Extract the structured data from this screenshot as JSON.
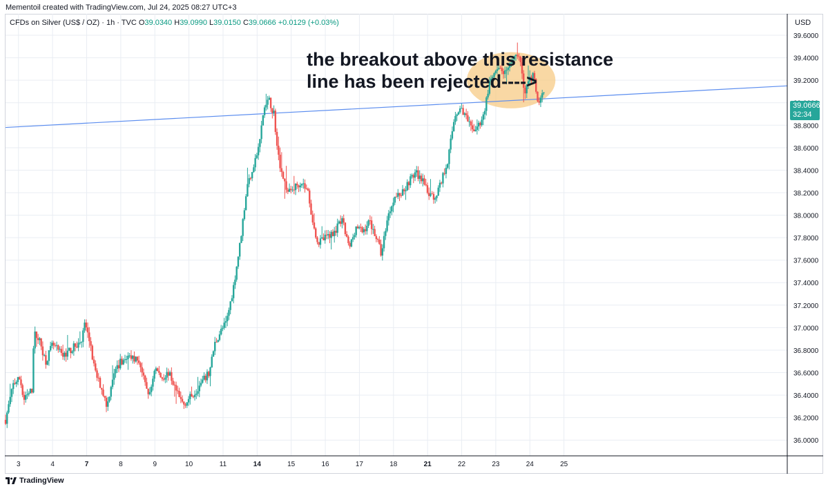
{
  "header": {
    "credit": "Mementoil created with TradingView.com, Jul 24, 2025 08:27 UTC+3",
    "currency": "USD"
  },
  "legend": {
    "symbol": "CFDs on Silver (US$ / OZ) · 1h · TVC",
    "o_label": "O",
    "o_value": "39.0340",
    "h_label": "H",
    "h_value": "39.0990",
    "l_label": "L",
    "l_value": "39.0150",
    "c_label": "C",
    "c_value": "39.0666",
    "change": "+0.0129 (+0.03%)"
  },
  "price_tag": {
    "price": "39.0666",
    "countdown": "32:34"
  },
  "annotation": {
    "line1": "the breakout above this resistance",
    "line2": "line has been rejected---->"
  },
  "footer": {
    "brand": "TradingView"
  },
  "colors": {
    "up": "#26a69a",
    "down": "#ef5350",
    "resistance": "#5b8def",
    "highlight": "#f7c77d",
    "grid": "#e9edf3"
  },
  "chart_data": {
    "type": "candlestick",
    "title": "CFDs on Silver (US$ / OZ) · 1h · TVC",
    "ylabel": "USD",
    "ylim": [
      35.86,
      39.68
    ],
    "xlim": [
      2.62,
      25.55
    ],
    "yticks": [
      "36.0000",
      "36.2000",
      "36.4000",
      "36.6000",
      "36.8000",
      "37.0000",
      "37.2000",
      "37.4000",
      "37.6000",
      "37.8000",
      "38.0000",
      "38.2000",
      "38.4000",
      "38.6000",
      "38.8000",
      "39.0000",
      "39.2000",
      "39.4000",
      "39.6000"
    ],
    "xticks": [
      {
        "x": 3,
        "label": "3",
        "bold": false
      },
      {
        "x": 4,
        "label": "4",
        "bold": false
      },
      {
        "x": 5,
        "label": "7",
        "bold": true
      },
      {
        "x": 6,
        "label": "8",
        "bold": false
      },
      {
        "x": 7,
        "label": "9",
        "bold": false
      },
      {
        "x": 8,
        "label": "10",
        "bold": false
      },
      {
        "x": 9,
        "label": "11",
        "bold": false
      },
      {
        "x": 10,
        "label": "14",
        "bold": true
      },
      {
        "x": 11,
        "label": "15",
        "bold": false
      },
      {
        "x": 12,
        "label": "16",
        "bold": false
      },
      {
        "x": 13,
        "label": "17",
        "bold": false
      },
      {
        "x": 14,
        "label": "18",
        "bold": false
      },
      {
        "x": 15,
        "label": "21",
        "bold": true
      },
      {
        "x": 16,
        "label": "22",
        "bold": false
      },
      {
        "x": 17,
        "label": "23",
        "bold": false
      },
      {
        "x": 18,
        "label": "24",
        "bold": false
      },
      {
        "x": 19,
        "label": "25",
        "bold": false
      }
    ],
    "resistance_line": {
      "x1": 2.62,
      "y1": 38.78,
      "x2": 25.55,
      "y2": 39.15
    },
    "highlight_ellipse": {
      "cx": 17.45,
      "cy": 39.2,
      "rx": 1.3,
      "ry": 0.25
    },
    "path": [
      [
        2.62,
        36.18
      ],
      [
        2.85,
        36.5
      ],
      [
        3.05,
        36.55
      ],
      [
        3.15,
        36.35
      ],
      [
        3.4,
        36.45
      ],
      [
        3.45,
        36.95
      ],
      [
        3.6,
        36.9
      ],
      [
        3.8,
        36.7
      ],
      [
        4.0,
        36.85
      ],
      [
        4.3,
        36.75
      ],
      [
        4.6,
        36.82
      ],
      [
        4.85,
        36.88
      ],
      [
        4.95,
        37.05
      ],
      [
        5.1,
        36.85
      ],
      [
        5.25,
        36.6
      ],
      [
        5.45,
        36.45
      ],
      [
        5.6,
        36.3
      ],
      [
        5.75,
        36.55
      ],
      [
        6.0,
        36.7
      ],
      [
        6.3,
        36.75
      ],
      [
        6.55,
        36.7
      ],
      [
        6.7,
        36.5
      ],
      [
        6.85,
        36.4
      ],
      [
        7.0,
        36.65
      ],
      [
        7.2,
        36.55
      ],
      [
        7.4,
        36.6
      ],
      [
        7.55,
        36.5
      ],
      [
        7.7,
        36.38
      ],
      [
        7.85,
        36.32
      ],
      [
        8.1,
        36.4
      ],
      [
        8.35,
        36.5
      ],
      [
        8.6,
        36.6
      ],
      [
        8.75,
        36.85
      ],
      [
        8.9,
        36.95
      ],
      [
        9.1,
        37.05
      ],
      [
        9.3,
        37.35
      ],
      [
        9.5,
        37.75
      ],
      [
        9.7,
        38.25
      ],
      [
        9.9,
        38.45
      ],
      [
        10.05,
        38.6
      ],
      [
        10.2,
        38.95
      ],
      [
        10.35,
        39.02
      ],
      [
        10.5,
        38.9
      ],
      [
        10.6,
        38.55
      ],
      [
        10.75,
        38.35
      ],
      [
        10.9,
        38.2
      ],
      [
        11.1,
        38.25
      ],
      [
        11.3,
        38.3
      ],
      [
        11.5,
        38.2
      ],
      [
        11.65,
        37.9
      ],
      [
        11.8,
        37.75
      ],
      [
        12.0,
        37.8
      ],
      [
        12.25,
        37.85
      ],
      [
        12.5,
        37.95
      ],
      [
        12.7,
        37.7
      ],
      [
        12.9,
        37.9
      ],
      [
        13.1,
        37.85
      ],
      [
        13.3,
        37.95
      ],
      [
        13.5,
        37.8
      ],
      [
        13.65,
        37.65
      ],
      [
        13.8,
        37.95
      ],
      [
        14.0,
        38.15
      ],
      [
        14.25,
        38.2
      ],
      [
        14.45,
        38.3
      ],
      [
        14.65,
        38.38
      ],
      [
        14.85,
        38.3
      ],
      [
        15.0,
        38.2
      ],
      [
        15.2,
        38.15
      ],
      [
        15.4,
        38.3
      ],
      [
        15.6,
        38.5
      ],
      [
        15.8,
        38.9
      ],
      [
        16.0,
        38.95
      ],
      [
        16.15,
        38.85
      ],
      [
        16.3,
        38.75
      ],
      [
        16.5,
        38.8
      ],
      [
        16.65,
        38.9
      ],
      [
        16.8,
        39.15
      ],
      [
        16.95,
        39.25
      ],
      [
        17.15,
        39.3
      ],
      [
        17.3,
        39.25
      ],
      [
        17.5,
        39.4
      ],
      [
        17.65,
        39.45
      ],
      [
        17.75,
        39.3
      ],
      [
        17.85,
        39.1
      ],
      [
        18.0,
        39.2
      ],
      [
        18.1,
        39.25
      ],
      [
        18.2,
        39.05
      ],
      [
        18.25,
        38.95
      ],
      [
        18.35,
        39.05
      ],
      [
        18.42,
        39.07
      ]
    ]
  }
}
